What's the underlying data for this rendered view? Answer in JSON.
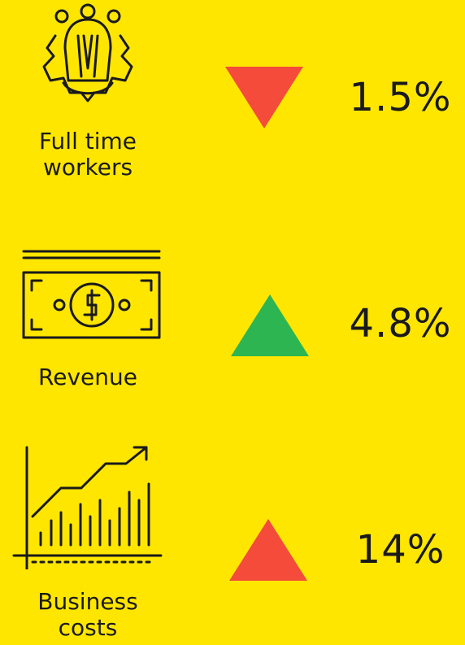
{
  "items": [
    {
      "label": "Full time workers",
      "change": "1.5%",
      "direction": "down",
      "color": "#f44b3a"
    },
    {
      "label": "Revenue",
      "change": "4.8%",
      "direction": "up",
      "color": "#2db552"
    },
    {
      "label": "Business costs",
      "change": "14%",
      "direction": "up",
      "color": "#f44b3a"
    }
  ]
}
